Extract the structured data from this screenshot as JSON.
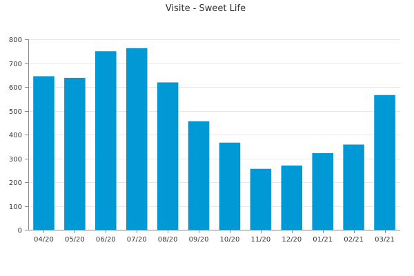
{
  "chart_data": {
    "type": "bar",
    "title": "Visite - Sweet Life",
    "xlabel": "",
    "ylabel": "",
    "categories": [
      "04/20",
      "05/20",
      "06/20",
      "07/20",
      "08/20",
      "09/20",
      "10/20",
      "11/20",
      "12/20",
      "01/21",
      "02/21",
      "03/21"
    ],
    "values": [
      645,
      638,
      750,
      763,
      619,
      456,
      366,
      256,
      270,
      322,
      358,
      566
    ],
    "ylim": [
      0,
      800
    ],
    "yticks": [
      0,
      100,
      200,
      300,
      400,
      500,
      600,
      700,
      800
    ],
    "grid": true,
    "legend": "none",
    "bar_color": "#0099d6",
    "grid_color": "#e6e6e6",
    "axis_color": "#888888"
  }
}
